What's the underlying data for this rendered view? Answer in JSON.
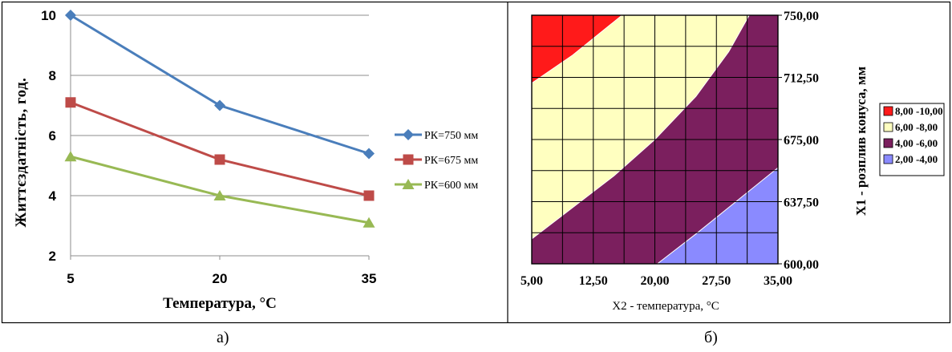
{
  "chart_data": [
    {
      "type": "line",
      "panel_label": "а)",
      "xlabel": "Температура, °С",
      "ylabel": "Життєздатність,  год.",
      "x": [
        5,
        20,
        35
      ],
      "x_tick_labels": [
        "5",
        "20",
        "35"
      ],
      "y_ticks": [
        2,
        4,
        6,
        8,
        10
      ],
      "y_tick_labels": [
        "2",
        "4",
        "6",
        "8",
        "10"
      ],
      "ylim": [
        2,
        10
      ],
      "grid": true,
      "legend_position": "right",
      "series": [
        {
          "name": "РК=750 мм",
          "values": [
            10.0,
            7.0,
            5.4
          ],
          "color": "#4a7ebb",
          "marker": "diamond"
        },
        {
          "name": "РК=675 мм",
          "values": [
            7.1,
            5.2,
            4.0
          ],
          "color": "#be4b48",
          "marker": "square"
        },
        {
          "name": "РК=600 мм",
          "values": [
            5.3,
            4.0,
            3.1
          ],
          "color": "#98b954",
          "marker": "triangle"
        }
      ]
    },
    {
      "type": "heatmap",
      "panel_label": "б)",
      "xlabel": "X2 - температура, °С",
      "ylabel": "X1 - розплив конуса, мм",
      "xlim": [
        5,
        35
      ],
      "ylim": [
        600,
        750
      ],
      "x_tick_labels": [
        "5,00",
        "12,50",
        "20,00",
        "27,50",
        "35,00"
      ],
      "y_tick_labels": [
        "600,00",
        "637,50",
        "675,00",
        "712,50",
        "750,00"
      ],
      "legend_position": "right",
      "levels": [
        {
          "label": "8,00 -10,00",
          "color": "#ff1a1a"
        },
        {
          "label": "6,00 -8,00",
          "color": "#ffffc0"
        },
        {
          "label": "4,00 -6,00",
          "color": "#7b1f5e"
        },
        {
          "label": "2,00 -4,00",
          "color": "#8a8aff"
        }
      ],
      "contour_boundaries": [
        {
          "between": "8,00 -10,00 | 6,00 -8,00",
          "points": [
            [
              5.0,
              709.0
            ],
            [
              10.0,
              726.0
            ],
            [
              13.0,
              738.0
            ],
            [
              16.0,
              750.0
            ]
          ]
        },
        {
          "between": "6,00 -8,00 | 4,00 -6,00",
          "points": [
            [
              5.0,
              615.0
            ],
            [
              10.0,
              634.0
            ],
            [
              15.0,
              653.0
            ],
            [
              20.0,
              675.0
            ],
            [
              25.0,
              701.0
            ],
            [
              29.0,
              728.0
            ],
            [
              31.5,
              750.0
            ]
          ]
        },
        {
          "between": "4,00 -6,00 | 2,00 -4,00",
          "points": [
            [
              20.3,
              600.0
            ],
            [
              25.0,
              618.0
            ],
            [
              30.0,
              638.0
            ],
            [
              35.0,
              658.0
            ]
          ]
        }
      ]
    }
  ]
}
